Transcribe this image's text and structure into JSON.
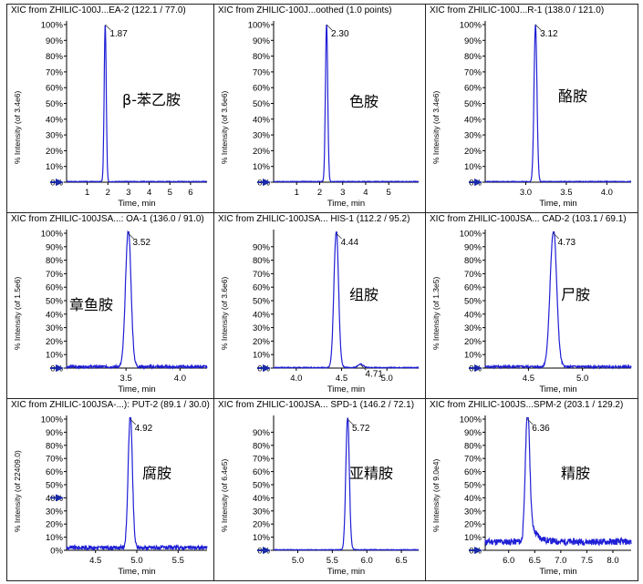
{
  "chart_data": [
    {
      "type": "line",
      "title": "XIC from ZHILIC-100J...EA-2 (122.1 / 77.0)",
      "compound": "β-苯乙胺",
      "xlabel": "Time, min",
      "ylabel": "% Intensity (of 3.4e6)",
      "xlim": [
        0,
        6.8
      ],
      "xticks": [
        1,
        2,
        3,
        4,
        5,
        6
      ],
      "yticks": [
        "0%",
        "10%",
        "20%",
        "30%",
        "40%",
        "50%",
        "60%",
        "70%",
        "80%",
        "90%",
        "100%"
      ],
      "ylim": [
        0,
        100
      ],
      "peaks": [
        {
          "rt": 1.87,
          "label": "1.87",
          "width": 0.05,
          "height": 100,
          "tail": 0.0
        }
      ],
      "baseline": 0.4,
      "noise": 0.2
    },
    {
      "type": "line",
      "title": "XIC from ZHILIC-100J...oothed (1.0 points)",
      "compound": "色胺",
      "xlabel": "Time, min",
      "ylabel": "% Intensity (of 3.6e6)",
      "xlim": [
        0,
        6.3
      ],
      "xticks": [
        1,
        2,
        3,
        4,
        5
      ],
      "yticks": [
        "0%",
        "10%",
        "20%",
        "30%",
        "40%",
        "50%",
        "60%",
        "70%",
        "80%",
        "90%",
        "100%"
      ],
      "ylim": [
        0,
        100
      ],
      "peaks": [
        {
          "rt": 2.3,
          "label": "2.30",
          "width": 0.05,
          "height": 100,
          "tail": 0.0
        }
      ],
      "baseline": 0.4,
      "noise": 0.2
    },
    {
      "type": "line",
      "title": "XIC from ZHILIC-100J...R-1 (138.0 / 121.0)",
      "compound": "酪胺",
      "xlabel": "Time, min",
      "ylabel": "% Intensity (of 3.4e6)",
      "xlim": [
        2.5,
        4.3
      ],
      "xticks": [
        3.0,
        3.5,
        4.0
      ],
      "yticks": [
        "0%",
        "10%",
        "20%",
        "30%",
        "40%",
        "50%",
        "60%",
        "70%",
        "80%",
        "90%",
        "100%"
      ],
      "ylim": [
        0,
        100
      ],
      "peaks": [
        {
          "rt": 3.12,
          "label": "3.12",
          "width": 0.018,
          "height": 100,
          "tail": 0.0
        }
      ],
      "baseline": 0.4,
      "noise": 0.2
    },
    {
      "type": "line",
      "title": "XIC from ZHILIC-100JSA...: OA-1 (136.0 / 91.0)",
      "compound": "章鱼胺",
      "xlabel": "Time, min",
      "ylabel": "% Intensity (of 1.5e6)",
      "xlim": [
        2.95,
        4.25
      ],
      "xticks": [
        3.5,
        4.0
      ],
      "yticks": [
        "0%",
        "10%",
        "20%",
        "30%",
        "40%",
        "50%",
        "60%",
        "70%",
        "80%",
        "90%",
        "100%"
      ],
      "ylim": [
        0,
        100
      ],
      "peaks": [
        {
          "rt": 3.52,
          "label": "3.52",
          "width": 0.025,
          "height": 100,
          "tail": 0.02
        }
      ],
      "baseline": 1.0,
      "noise": 1.0
    },
    {
      "type": "line",
      "title": "XIC from ZHILIC-100JSA... HIS-1 (112.2 / 95.2)",
      "compound": "组胺",
      "xlabel": "Time, min",
      "ylabel": "% Intensity (of 3.6e6)",
      "xlim": [
        3.75,
        5.35
      ],
      "xticks": [
        4.0,
        4.5,
        5.0
      ],
      "yticks": [
        "0%",
        "10%",
        "20%",
        "30%",
        "40%",
        "50%",
        "60%",
        "70%",
        "80%",
        "90%"
      ],
      "ylim": [
        0,
        100
      ],
      "peaks": [
        {
          "rt": 4.44,
          "label": "4.44",
          "width": 0.025,
          "height": 100,
          "tail": 0.02
        },
        {
          "rt": 4.71,
          "label": "4.71",
          "width": 0.03,
          "height": 2.5,
          "tail": 0.0
        }
      ],
      "baseline": 0.4,
      "noise": 0.3
    },
    {
      "type": "line",
      "title": "XIC from ZHILIC-100JSA... CAD-2 (103.1 / 69.1)",
      "compound": "尸胺",
      "xlabel": "Time, min",
      "ylabel": "% Intensity (of 1.3e5)",
      "xlim": [
        4.1,
        5.45
      ],
      "xticks": [
        4.5,
        5.0
      ],
      "yticks": [
        "0%",
        "10%",
        "20%",
        "30%",
        "40%",
        "50%",
        "60%",
        "70%",
        "80%",
        "90%",
        "100%"
      ],
      "ylim": [
        0,
        100
      ],
      "peaks": [
        {
          "rt": 4.73,
          "label": "4.73",
          "width": 0.03,
          "height": 100,
          "tail": 0.02
        }
      ],
      "baseline": 1.0,
      "noise": 0.8
    },
    {
      "type": "line",
      "title": "XIC from ZHILIC-100JSA-...): PUT-2 (89.1 / 30.0)",
      "compound": "腐胺",
      "xlabel": "Time, min",
      "ylabel": "% Intensity (of 22409.0)",
      "xlim": [
        4.15,
        5.85
      ],
      "xticks": [
        4.5,
        5.0,
        5.5
      ],
      "yticks": [
        "0%",
        "10%",
        "20%",
        "30%",
        "40%",
        "50%",
        "60%",
        "70%",
        "80%",
        "90%",
        "100%"
      ],
      "ylim": [
        0,
        100
      ],
      "peaks": [
        {
          "rt": 4.92,
          "label": "4.92",
          "width": 0.025,
          "height": 100,
          "tail": 0.02
        }
      ],
      "baseline": 2.0,
      "noise": 1.5
    },
    {
      "type": "line",
      "title": "XIC from ZHILIC-100JSA... SPD-1 (146.2 / 72.1)",
      "compound": "亚精胺",
      "xlabel": "Time, min",
      "ylabel": "% Intensity (of 6.4e5)",
      "xlim": [
        4.65,
        6.75
      ],
      "xticks": [
        5.0,
        5.5,
        6.0,
        6.5
      ],
      "yticks": [
        "0%",
        "10%",
        "20%",
        "30%",
        "40%",
        "50%",
        "60%",
        "70%",
        "80%",
        "90%"
      ],
      "ylim": [
        0,
        100
      ],
      "peaks": [
        {
          "rt": 5.72,
          "label": "5.72",
          "width": 0.025,
          "height": 100,
          "tail": 0.02
        }
      ],
      "baseline": 0.4,
      "noise": 0.2
    },
    {
      "type": "line",
      "title": "XIC from ZHILIC-100JS...SPM-2 (203.1 / 129.2)",
      "compound": "精胺",
      "xlabel": "Time, min",
      "ylabel": "% Intensity (of 9.0e4)",
      "xlim": [
        5.55,
        8.35
      ],
      "xticks": [
        6.0,
        6.5,
        7.0,
        7.5,
        8.0
      ],
      "yticks": [
        "0%",
        "10%",
        "20%",
        "30%",
        "40%",
        "50%",
        "60%",
        "70%",
        "80%",
        "90%",
        "100%"
      ],
      "ylim": [
        0,
        100
      ],
      "peaks": [
        {
          "rt": 6.36,
          "label": "6.36",
          "width": 0.04,
          "height": 100,
          "tail": 0.12
        }
      ],
      "baseline": 6.5,
      "noise": 2.5
    }
  ],
  "colors": {
    "trace": "#1f1fd6",
    "marker": "#1a2aa8",
    "axis": "#000000",
    "border": "#222222"
  }
}
